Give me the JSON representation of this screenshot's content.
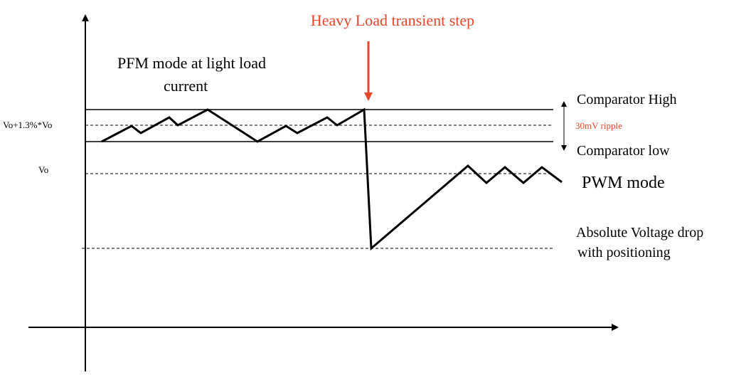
{
  "labels": {
    "heavy_load": "Heavy Load transient step",
    "pfm_mode": [
      "PFM mode at light load",
      "current"
    ],
    "comparator_high": "Comparator High",
    "ripple": "30mV ripple",
    "comparator_low": "Comparator low",
    "vo_plus": "Vo+1.3%*Vo",
    "vo": "Vo",
    "pwm_mode": "PWM mode",
    "absolute_drop": [
      "Absolute Voltage drop",
      "with positioning"
    ]
  }
}
